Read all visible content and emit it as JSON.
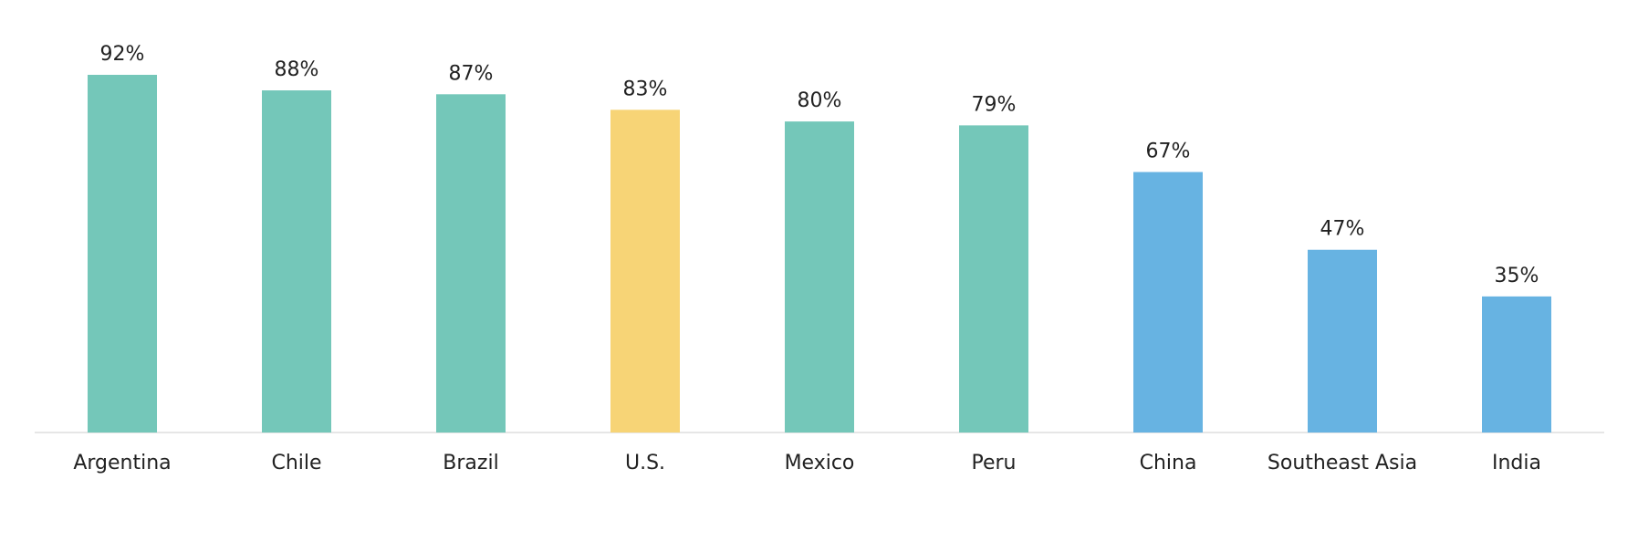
{
  "chart_data": {
    "type": "bar",
    "categories": [
      "Argentina",
      "Chile",
      "Brazil",
      "U.S.",
      "Mexico",
      "Peru",
      "China",
      "Southeast Asia",
      "India"
    ],
    "values": [
      92,
      88,
      87,
      83,
      80,
      79,
      67,
      47,
      35
    ],
    "value_labels": [
      "92%",
      "88%",
      "87%",
      "83%",
      "80%",
      "79%",
      "67%",
      "47%",
      "35%"
    ],
    "colors": [
      "#74c7b9",
      "#74c7b9",
      "#74c7b9",
      "#f7d476",
      "#74c7b9",
      "#74c7b9",
      "#67b3e2",
      "#67b3e2",
      "#67b3e2"
    ]
  }
}
